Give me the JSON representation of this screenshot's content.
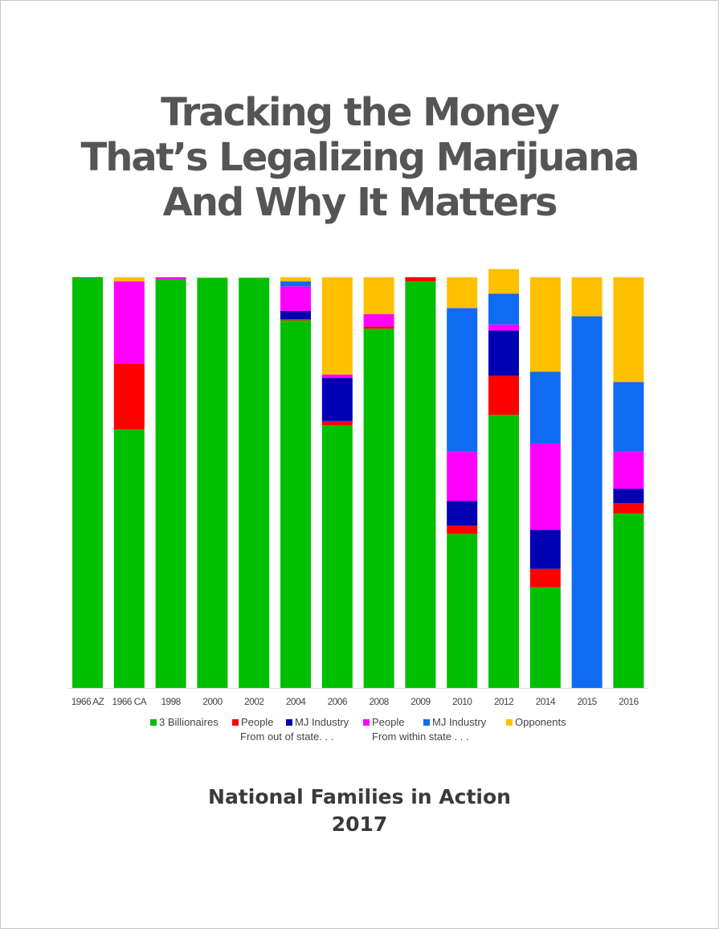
{
  "page": {
    "title_lines": [
      "Tracking the Money",
      "That’s Legalizing Marijuana",
      "And Why It Matters"
    ],
    "organization": "National Families in Action",
    "year": "2017"
  },
  "legend": {
    "items": [
      {
        "key": "billionaires",
        "label": "3 Billionaires",
        "color": "#00bf00"
      },
      {
        "key": "people_out",
        "label": "People",
        "color": "#ff0000"
      },
      {
        "key": "industry_out",
        "label": "MJ Industry",
        "color": "#0000b3"
      },
      {
        "key": "people_in",
        "label": "People",
        "color": "#ff00ff"
      },
      {
        "key": "industry_in",
        "label": "MJ Industry",
        "color": "#0f6bf2"
      },
      {
        "key": "opponents",
        "label": "Opponents",
        "color": "#ffc000"
      }
    ],
    "note_out_of_state": "From out of state. . .",
    "note_within_state": "From within state . . ."
  },
  "chart_data": {
    "type": "bar",
    "stacked": true,
    "percent_scale": true,
    "ylim": [
      0,
      100
    ],
    "categories": [
      "1966 AZ",
      "1966 CA",
      "1998",
      "2000",
      "2002",
      "2004",
      "2006",
      "2008",
      "2009",
      "2010",
      "2012",
      "2014",
      "2015",
      "2016"
    ],
    "series": [
      {
        "name": "3 Billionaires",
        "color": "#00bf00",
        "values": [
          99.8,
          63,
          99.5,
          99.8,
          99.8,
          89.5,
          64,
          87.5,
          99,
          37.5,
          66.5,
          24.5,
          0,
          42.5
        ]
      },
      {
        "name": "People",
        "color": "#ff0000",
        "values": [
          0,
          16,
          0,
          0,
          0,
          0.3,
          1,
          0.5,
          1,
          2,
          9.5,
          4.5,
          0,
          2.5
        ]
      },
      {
        "name": "MJ Industry",
        "color": "#0000b3",
        "values": [
          0,
          0,
          0,
          0,
          0,
          2,
          10.5,
          0,
          0,
          6,
          11,
          9.5,
          0,
          3.5
        ]
      },
      {
        "name": "People",
        "color": "#ff00ff",
        "values": [
          0.2,
          20,
          0.5,
          0,
          0,
          6,
          0.8,
          3,
          0,
          12,
          1.5,
          21,
          0,
          9
        ]
      },
      {
        "name": "MJ Industry",
        "color": "#0f6bf2",
        "values": [
          0,
          0,
          0,
          0,
          0,
          1.2,
          0,
          0,
          0,
          35,
          7.5,
          17.5,
          90.5,
          17
        ]
      },
      {
        "name": "Opponents",
        "color": "#ffc000",
        "values": [
          0,
          1,
          0,
          0.2,
          0.2,
          1,
          23.7,
          9,
          0,
          7.5,
          6,
          23,
          9.5,
          25.5
        ]
      }
    ]
  }
}
